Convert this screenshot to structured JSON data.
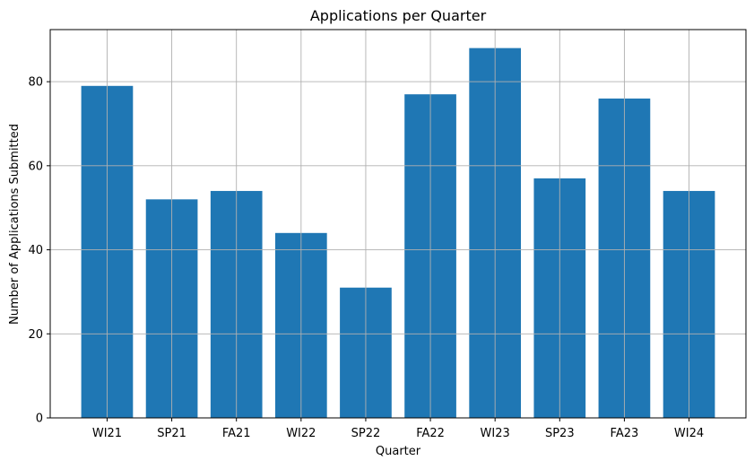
{
  "chart_data": {
    "type": "bar",
    "title": "Applications per Quarter",
    "xlabel": "Quarter",
    "ylabel": "Number of Applications Submitted",
    "categories": [
      "WI21",
      "SP21",
      "FA21",
      "WI22",
      "SP22",
      "FA22",
      "WI23",
      "SP23",
      "FA23",
      "WI24"
    ],
    "values": [
      79,
      52,
      54,
      44,
      31,
      77,
      88,
      57,
      76,
      54
    ],
    "ylim": [
      0,
      92.4
    ],
    "yticks": [
      0,
      20,
      40,
      60,
      80
    ],
    "grid": true,
    "bar_color": "#1f77b4",
    "grid_color": "#b0b0b0"
  }
}
